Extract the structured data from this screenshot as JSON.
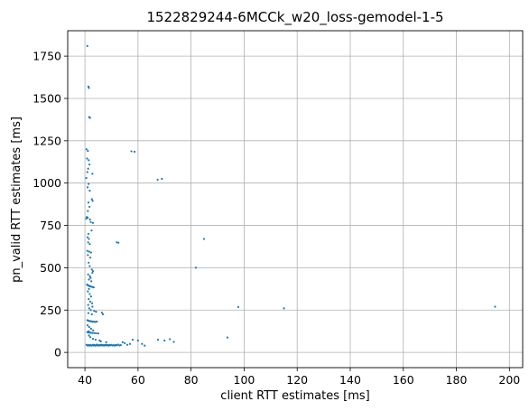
{
  "chart_data": {
    "type": "scatter",
    "title": "1522829244-6MCCk_w20_loss-gemodel-1-5",
    "xlabel": "client RTT estimates [ms]",
    "ylabel": "pn_valid RTT estimates [ms]",
    "xlim": [
      33.5,
      205
    ],
    "ylim": [
      -90,
      1900
    ],
    "xticks": [
      40,
      60,
      80,
      100,
      120,
      140,
      160,
      180,
      200
    ],
    "yticks": [
      0,
      250,
      500,
      750,
      1000,
      1250,
      1500,
      1750
    ],
    "grid": true,
    "color": "#1f77b4",
    "series": [
      {
        "points": [
          [
            40.9,
            1810
          ],
          [
            41.3,
            1570
          ],
          [
            41.5,
            1562
          ],
          [
            41.6,
            1390
          ],
          [
            41.9,
            1385
          ],
          [
            40.6,
            1200
          ],
          [
            41.1,
            1190
          ],
          [
            40.8,
            1145
          ],
          [
            41.4,
            1135
          ],
          [
            41.7,
            1110
          ],
          [
            41.2,
            1085
          ],
          [
            40.9,
            1065
          ],
          [
            42.8,
            1055
          ],
          [
            40.5,
            1030
          ],
          [
            41.4,
            995
          ],
          [
            41.0,
            975
          ],
          [
            41.8,
            955
          ],
          [
            42.6,
            905
          ],
          [
            42.9,
            895
          ],
          [
            41.3,
            885
          ],
          [
            41.7,
            860
          ],
          [
            41.1,
            835
          ],
          [
            40.7,
            800
          ],
          [
            41.0,
            795
          ],
          [
            40.5,
            790
          ],
          [
            41.9,
            785
          ],
          [
            42.2,
            770
          ],
          [
            43.0,
            765
          ],
          [
            42.5,
            720
          ],
          [
            41.3,
            700
          ],
          [
            41.0,
            680
          ],
          [
            41.5,
            670
          ],
          [
            41.2,
            650
          ],
          [
            41.8,
            640
          ],
          [
            40.9,
            600
          ],
          [
            41.6,
            595
          ],
          [
            42.3,
            590
          ],
          [
            41.1,
            575
          ],
          [
            42.0,
            560
          ],
          [
            41.4,
            530
          ],
          [
            41.8,
            510
          ],
          [
            42.6,
            490
          ],
          [
            43.0,
            480
          ],
          [
            42.8,
            470
          ],
          [
            41.2,
            460
          ],
          [
            41.9,
            450
          ],
          [
            42.1,
            440
          ],
          [
            41.5,
            430
          ],
          [
            42.4,
            420
          ],
          [
            40.8,
            400
          ],
          [
            41.0,
            398
          ],
          [
            41.3,
            395
          ],
          [
            41.7,
            392
          ],
          [
            42.0,
            390
          ],
          [
            42.4,
            388
          ],
          [
            42.9,
            386
          ],
          [
            43.3,
            384
          ],
          [
            41.5,
            375
          ],
          [
            41.1,
            360
          ],
          [
            41.8,
            345
          ],
          [
            42.3,
            330
          ],
          [
            41.4,
            315
          ],
          [
            42.0,
            300
          ],
          [
            42.7,
            290
          ],
          [
            41.2,
            280
          ],
          [
            42.8,
            270
          ],
          [
            41.6,
            260
          ],
          [
            42.2,
            250
          ],
          [
            43.5,
            245
          ],
          [
            44.2,
            240
          ],
          [
            41.3,
            232
          ],
          [
            42.6,
            225
          ],
          [
            46.4,
            235
          ],
          [
            46.8,
            225
          ],
          [
            40.9,
            190
          ],
          [
            41.2,
            188
          ],
          [
            41.5,
            186
          ],
          [
            41.8,
            185
          ],
          [
            42.1,
            184
          ],
          [
            42.5,
            183
          ],
          [
            42.9,
            182
          ],
          [
            43.4,
            181
          ],
          [
            43.9,
            180
          ],
          [
            44.5,
            182
          ],
          [
            41.0,
            160
          ],
          [
            41.6,
            150
          ],
          [
            42.3,
            140
          ],
          [
            43.1,
            130
          ],
          [
            41.4,
            125
          ],
          [
            40.9,
            120
          ],
          [
            41.3,
            118
          ],
          [
            41.7,
            117
          ],
          [
            42.2,
            116
          ],
          [
            42.8,
            115
          ],
          [
            43.5,
            114
          ],
          [
            44.2,
            113
          ],
          [
            45.0,
            112
          ],
          [
            41.5,
            100
          ],
          [
            42.0,
            90
          ],
          [
            43.0,
            80
          ],
          [
            44.0,
            75
          ],
          [
            45.5,
            70
          ],
          [
            46.0,
            65
          ],
          [
            48.0,
            60
          ],
          [
            40.6,
            45
          ],
          [
            40.9,
            42
          ],
          [
            41.2,
            40
          ],
          [
            41.5,
            44
          ],
          [
            41.8,
            41
          ],
          [
            42.1,
            43
          ],
          [
            42.4,
            40
          ],
          [
            42.7,
            42
          ],
          [
            43.0,
            45
          ],
          [
            43.3,
            41
          ],
          [
            43.6,
            44
          ],
          [
            43.9,
            40
          ],
          [
            44.2,
            42
          ],
          [
            44.5,
            46
          ],
          [
            44.8,
            41
          ],
          [
            45.1,
            43
          ],
          [
            45.4,
            40
          ],
          [
            45.7,
            44
          ],
          [
            46.0,
            42
          ],
          [
            46.3,
            45
          ],
          [
            46.6,
            41
          ],
          [
            46.9,
            43
          ],
          [
            47.2,
            40
          ],
          [
            47.5,
            44
          ],
          [
            47.8,
            42
          ],
          [
            48.1,
            45
          ],
          [
            48.4,
            41
          ],
          [
            48.7,
            43
          ],
          [
            49.0,
            40
          ],
          [
            49.3,
            44
          ],
          [
            49.6,
            42
          ],
          [
            50.0,
            45
          ],
          [
            50.4,
            41
          ],
          [
            50.8,
            43
          ],
          [
            51.2,
            40
          ],
          [
            51.6,
            44
          ],
          [
            52.0,
            42
          ],
          [
            52.5,
            46
          ],
          [
            53.0,
            41
          ],
          [
            53.5,
            43
          ],
          [
            52.0,
            650
          ],
          [
            52.6,
            648
          ],
          [
            54.2,
            60
          ],
          [
            55.0,
            55
          ],
          [
            56.0,
            45
          ],
          [
            57.0,
            50
          ],
          [
            58.0,
            75
          ],
          [
            60.0,
            70
          ],
          [
            61.5,
            50
          ],
          [
            62.5,
            40
          ],
          [
            57.5,
            1188
          ],
          [
            58.7,
            1185
          ],
          [
            67.4,
            1020
          ],
          [
            69.0,
            1025
          ],
          [
            67.5,
            75
          ],
          [
            70.0,
            70
          ],
          [
            72.0,
            78
          ],
          [
            73.5,
            62
          ],
          [
            84.9,
            670
          ],
          [
            81.8,
            500
          ],
          [
            93.7,
            88
          ],
          [
            97.8,
            268
          ],
          [
            115.0,
            260
          ],
          [
            194.6,
            270
          ]
        ]
      }
    ]
  }
}
